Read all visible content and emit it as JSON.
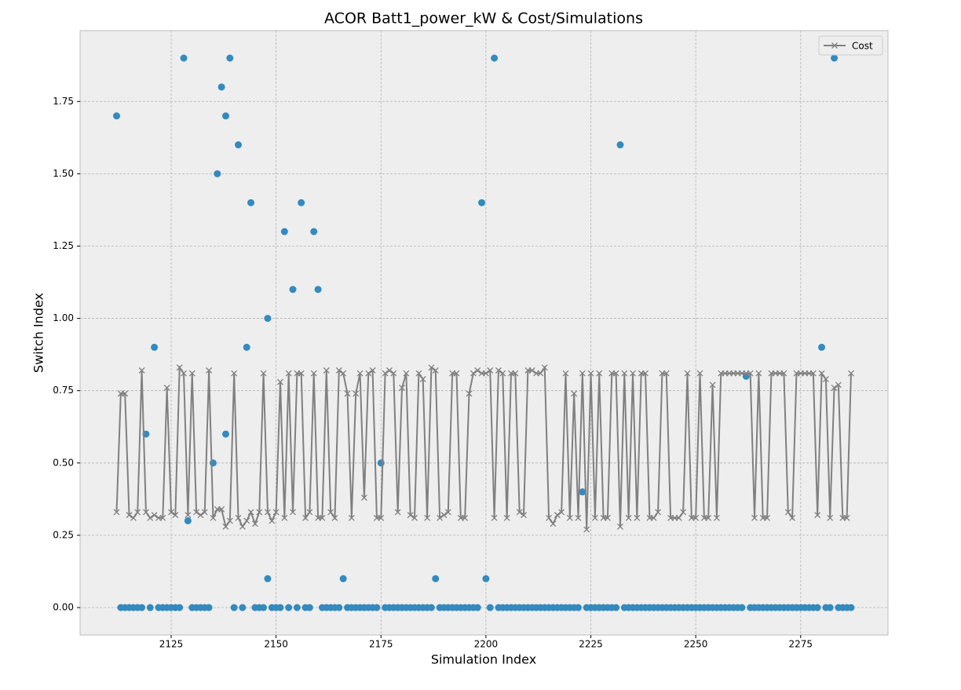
{
  "chart_data": {
    "type": "scatter",
    "title": "ACOR Batt1_power_kW & Cost/Simulations",
    "x_label": "Simulation Index",
    "y_label": "Switch Index",
    "xlim": [
      2103.3,
      2295.8
    ],
    "ylim": [
      -0.095,
      1.995
    ],
    "xticks": [
      2125,
      2150,
      2175,
      2200,
      2225,
      2250,
      2275
    ],
    "yticks": [
      {
        "value": 0,
        "label": "0.00"
      },
      {
        "value": 0.25,
        "label": "0.25"
      },
      {
        "value": 0.5,
        "label": "0.50"
      },
      {
        "value": 0.75,
        "label": "0.75"
      },
      {
        "value": 1,
        "label": "1.00"
      },
      {
        "value": 1.25,
        "label": "1.25"
      },
      {
        "value": 1.5,
        "label": "1.50"
      },
      {
        "value": 1.75,
        "label": "1.75"
      }
    ],
    "grid": true,
    "legend": "upper right",
    "x": [
      2112,
      2113,
      2114,
      2115,
      2116,
      2117,
      2118,
      2119,
      2120,
      2121,
      2122,
      2123,
      2124,
      2125,
      2126,
      2127,
      2128,
      2129,
      2130,
      2131,
      2132,
      2133,
      2134,
      2135,
      2136,
      2137,
      2138,
      2139,
      2140,
      2141,
      2142,
      2143,
      2144,
      2145,
      2146,
      2147,
      2148,
      2149,
      2150,
      2151,
      2152,
      2153,
      2154,
      2155,
      2156,
      2157,
      2158,
      2159,
      2160,
      2161,
      2162,
      2163,
      2164,
      2165,
      2166,
      2167,
      2168,
      2169,
      2170,
      2171,
      2172,
      2173,
      2174,
      2175,
      2176,
      2177,
      2178,
      2179,
      2180,
      2181,
      2182,
      2183,
      2184,
      2185,
      2186,
      2187,
      2188,
      2189,
      2190,
      2191,
      2192,
      2193,
      2194,
      2195,
      2196,
      2197,
      2198,
      2199,
      2200,
      2201,
      2202,
      2203,
      2204,
      2205,
      2206,
      2207,
      2208,
      2209,
      2210,
      2211,
      2212,
      2213,
      2214,
      2215,
      2216,
      2217,
      2218,
      2219,
      2220,
      2221,
      2222,
      2223,
      2224,
      2225,
      2226,
      2227,
      2228,
      2229,
      2230,
      2231,
      2232,
      2233,
      2234,
      2235,
      2236,
      2237,
      2238,
      2239,
      2240,
      2241,
      2242,
      2243,
      2244,
      2245,
      2246,
      2247,
      2248,
      2249,
      2250,
      2251,
      2252,
      2253,
      2254,
      2255,
      2256,
      2257,
      2258,
      2259,
      2260,
      2261,
      2262,
      2263,
      2264,
      2265,
      2266,
      2267,
      2268,
      2269,
      2270,
      2271,
      2272,
      2273,
      2274,
      2275,
      2276,
      2277,
      2278,
      2279,
      2280,
      2281,
      2282,
      2283,
      2284,
      2285,
      2286,
      2287
    ],
    "series": [
      {
        "type": "scatter",
        "color": "#348abd",
        "values": [
          1.7,
          0,
          0,
          0,
          0,
          0,
          0,
          0.6,
          0,
          0.9,
          0,
          0,
          0,
          0,
          0,
          0,
          1.9,
          0.3,
          0,
          0,
          0,
          0,
          0,
          0.5,
          1.5,
          1.8,
          1.7,
          1.9,
          0,
          1.6,
          0,
          0.9,
          1.4,
          0,
          0,
          0,
          1.0,
          0,
          0,
          0,
          1.3,
          0,
          1.1,
          0,
          1.4,
          0,
          0,
          1.3,
          1.1,
          0,
          0,
          0,
          0,
          0,
          0.1,
          0,
          0,
          0,
          0,
          0,
          0,
          0,
          0,
          0.5,
          0,
          0,
          0,
          0,
          0,
          0,
          0,
          0,
          0,
          0,
          0,
          0,
          0.1,
          0,
          0,
          0,
          0,
          0,
          0,
          0,
          0,
          0,
          0,
          1.4,
          0.1,
          0,
          1.9,
          0,
          0,
          0,
          0,
          0,
          0,
          0,
          0,
          0,
          0,
          0,
          0,
          0,
          0,
          0,
          0,
          0,
          0,
          0,
          0,
          0.4,
          0,
          0,
          0,
          0,
          0,
          0,
          0,
          0,
          1.6,
          0,
          0,
          0,
          0,
          0,
          0,
          0,
          0,
          0,
          0,
          0,
          0,
          0,
          0,
          0,
          0,
          0,
          0,
          0,
          0,
          0,
          0,
          0,
          0,
          0,
          0,
          0,
          0,
          0,
          0.8,
          0,
          0,
          0,
          0,
          0,
          0,
          0,
          0,
          0,
          0,
          0,
          0,
          0,
          0,
          0,
          0,
          0,
          0.9,
          0,
          0,
          1.9,
          0,
          0,
          0,
          0
        ]
      },
      {
        "type": "scatter",
        "color": "#348abd",
        "x": [
          2138,
          2148
        ],
        "values": [
          0.6,
          0.1
        ]
      },
      {
        "type": "line",
        "name": "Cost",
        "color": "#808080",
        "marker": "x",
        "values": [
          0.33,
          0.74,
          0.74,
          0.32,
          0.31,
          0.33,
          0.82,
          0.33,
          0.31,
          0.32,
          0.31,
          0.31,
          0.76,
          0.33,
          0.32,
          0.83,
          0.81,
          0.32,
          0.81,
          0.33,
          0.32,
          0.33,
          0.82,
          0.31,
          0.34,
          0.34,
          0.28,
          0.3,
          0.81,
          0.31,
          0.28,
          0.3,
          0.33,
          0.29,
          0.33,
          0.81,
          0.33,
          0.3,
          0.33,
          0.78,
          0.31,
          0.81,
          0.33,
          0.81,
          0.81,
          0.31,
          0.33,
          0.81,
          0.31,
          0.31,
          0.82,
          0.33,
          0.31,
          0.82,
          0.81,
          0.74,
          0.31,
          0.74,
          0.81,
          0.38,
          0.81,
          0.82,
          0.31,
          0.31,
          0.81,
          0.82,
          0.81,
          0.33,
          0.76,
          0.81,
          0.32,
          0.31,
          0.81,
          0.79,
          0.31,
          0.83,
          0.82,
          0.31,
          0.32,
          0.33,
          0.81,
          0.81,
          0.31,
          0.31,
          0.74,
          0.81,
          0.82,
          0.81,
          0.81,
          0.82,
          0.31,
          0.82,
          0.81,
          0.31,
          0.81,
          0.81,
          0.33,
          0.32,
          0.82,
          0.82,
          0.81,
          0.81,
          0.83,
          0.31,
          0.29,
          0.32,
          0.33,
          0.81,
          0.31,
          0.74,
          0.31,
          0.81,
          0.27,
          0.81,
          0.31,
          0.81,
          0.31,
          0.31,
          0.81,
          0.81,
          0.28,
          0.81,
          0.31,
          0.81,
          0.31,
          0.81,
          0.81,
          0.31,
          0.31,
          0.33,
          0.81,
          0.81,
          0.31,
          0.31,
          0.31,
          0.33,
          0.81,
          0.31,
          0.31,
          0.81,
          0.31,
          0.31,
          0.77,
          0.31,
          0.81,
          0.81,
          0.81,
          0.81,
          0.81,
          0.81,
          0.81,
          0.81,
          0.31,
          0.81,
          0.31,
          0.31,
          0.81,
          0.81,
          0.81,
          0.81,
          0.33,
          0.31,
          0.81,
          0.81,
          0.81,
          0.81,
          0.81,
          0.32,
          0.81,
          0.79,
          0.31,
          0.76,
          0.77,
          0.31,
          0.31,
          0.81
        ]
      }
    ]
  }
}
